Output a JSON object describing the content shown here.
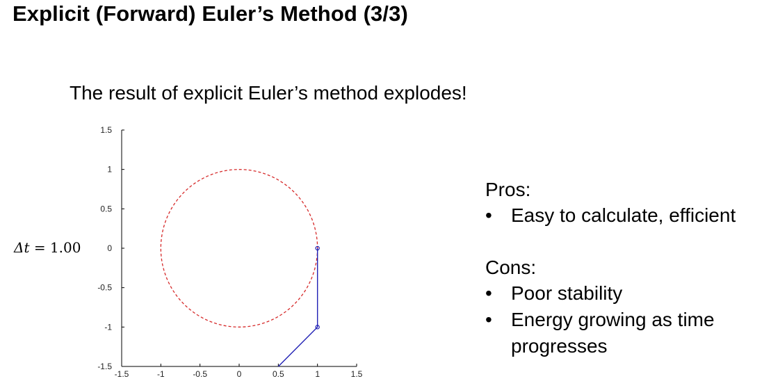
{
  "slide": {
    "title": "Explicit (Forward) Euler’s Method (3/3)",
    "subtitle": "The result of explicit Euler’s method explodes!",
    "dt_var": "Δ𝑡",
    "dt_eq": " = 1.00"
  },
  "notes": {
    "pros_heading": "Pros:",
    "pros": [
      "Easy to calculate, efficient"
    ],
    "cons_heading": "Cons:",
    "cons": [
      "Poor stability",
      "Energy growing as time",
      "progresses"
    ],
    "bullet": "•"
  },
  "chart_data": {
    "type": "line",
    "xlim": [
      -1.5,
      1.5
    ],
    "ylim": [
      -1.5,
      1.5
    ],
    "x_ticks": [
      -1.5,
      -1,
      -0.5,
      0,
      0.5,
      1,
      1.5
    ],
    "y_ticks": [
      -1.5,
      -1,
      -0.5,
      0,
      0.5,
      1,
      1.5
    ],
    "x_tick_labels": [
      "-1.5",
      "-1",
      "-0.5",
      "0",
      "0.5",
      "1",
      "1.5"
    ],
    "y_tick_labels": [
      "-1.5",
      "-1",
      "-0.5",
      "0",
      "0.5",
      "1",
      "1.5"
    ],
    "grid": false,
    "series": [
      {
        "style": "dashed",
        "color": "#d62a2a",
        "shape": "circle",
        "center": [
          0,
          0
        ],
        "radius": 1
      },
      {
        "style": "solid-markers",
        "color": "#1f1fb4",
        "x": [
          1,
          1,
          0.5
        ],
        "y": [
          0,
          -1,
          -1.5
        ]
      }
    ]
  }
}
